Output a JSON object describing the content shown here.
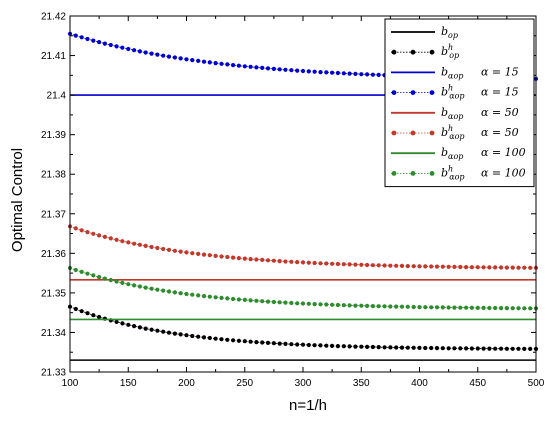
{
  "chart_data": {
    "type": "line",
    "xlabel": "n=1/h",
    "ylabel": "Optimal Control",
    "xlim": [
      100,
      500
    ],
    "ylim": [
      21.33,
      21.42
    ],
    "x_ticks": [
      "100",
      "150",
      "200",
      "250",
      "300",
      "350",
      "400",
      "450",
      "500"
    ],
    "y_ticks": [
      "21.33",
      "21.34",
      "21.35",
      "21.36",
      "21.37",
      "21.38",
      "21.39",
      "21.4",
      "21.41",
      "21.42"
    ],
    "grid": false,
    "legend_position": "top-right",
    "series": [
      {
        "name": "b_op",
        "legend": {
          "base": "b",
          "sub": "op",
          "sup": "",
          "alpha": ""
        },
        "color": "#000000",
        "style": "line",
        "value": 21.333
      },
      {
        "name": "b^h_op",
        "legend": {
          "base": "b",
          "sub": "op",
          "sup": "h",
          "alpha": ""
        },
        "color": "#000000",
        "style": "dots",
        "start": 21.3465,
        "end": 21.3357,
        "rate": 0.011
      },
      {
        "name": "b_αop α = 15",
        "legend": {
          "base": "b",
          "sub": "αop",
          "sup": "",
          "alpha": "α = 15"
        },
        "color": "#0000cc",
        "style": "line",
        "value": 21.4
      },
      {
        "name": "b^h_αop α = 15",
        "legend": {
          "base": "b",
          "sub": "αop",
          "sup": "h",
          "alpha": "α = 15"
        },
        "color": "#0000cc",
        "style": "dots",
        "start": 21.4155,
        "end": 21.4036,
        "rate": 0.0078
      },
      {
        "name": "b_αop α = 50",
        "legend": {
          "base": "b",
          "sub": "αop",
          "sup": "",
          "alpha": "α = 50"
        },
        "color": "#c0392b",
        "style": "line",
        "value": 21.3533
      },
      {
        "name": "b^h_αop α = 50",
        "legend": {
          "base": "b",
          "sub": "αop",
          "sup": "h",
          "alpha": "α = 50"
        },
        "color": "#c0392b",
        "style": "dots",
        "start": 21.3668,
        "end": 21.3561,
        "rate": 0.0095
      },
      {
        "name": "b_αop α = 100",
        "legend": {
          "base": "b",
          "sub": "αop",
          "sup": "",
          "alpha": "α = 100"
        },
        "color": "#2e8b2e",
        "style": "line",
        "value": 21.3433
      },
      {
        "name": "b^h_αop α = 100",
        "legend": {
          "base": "b",
          "sub": "αop",
          "sup": "h",
          "alpha": "α = 100"
        },
        "color": "#2e8b2e",
        "style": "dots",
        "start": 21.3563,
        "end": 21.3459,
        "rate": 0.01
      }
    ]
  }
}
